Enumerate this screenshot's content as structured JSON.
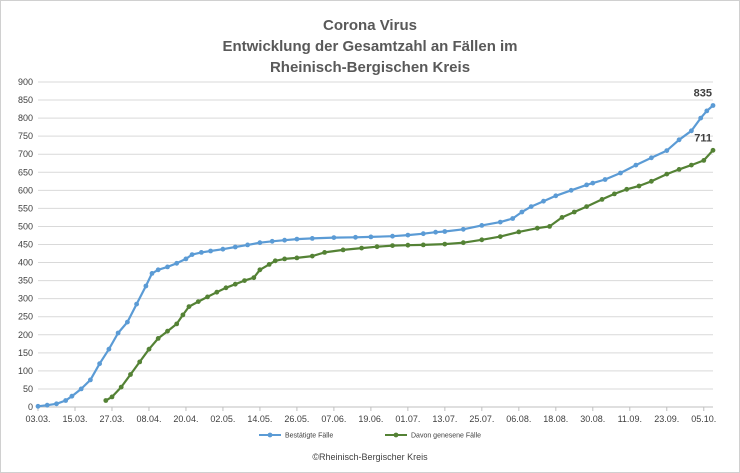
{
  "chart_data": {
    "type": "line",
    "title": [
      "Corona Virus",
      "Entwicklung der Gesamtzahl an Fällen im",
      "Rheinisch-Bergischen Kreis"
    ],
    "credit": "©Rheinisch-Bergischer Kreis",
    "xlabel": "",
    "ylabel": "",
    "ylim": [
      0,
      900
    ],
    "yticks": [
      "0",
      "50",
      "100",
      "150",
      "200",
      "250",
      "300",
      "350",
      "400",
      "450",
      "500",
      "550",
      "600",
      "650",
      "700",
      "750",
      "800",
      "850",
      "900"
    ],
    "xlim": [
      "2020-03-03",
      "2020-10-08"
    ],
    "xticks": [
      "03.03.",
      "15.03.",
      "27.03.",
      "08.04.",
      "20.04.",
      "02.05.",
      "14.05.",
      "26.05.",
      "07.06.",
      "19.06.",
      "01.07.",
      "13.07.",
      "25.07.",
      "06.08.",
      "18.08.",
      "30.08.",
      "11.09.",
      "23.09.",
      "05.10."
    ],
    "grid": "horizontal",
    "legend_position": "bottom",
    "colors": {
      "series_1": "#5b9bd5",
      "series_2": "#548235"
    },
    "end_labels": [
      "835",
      "711"
    ],
    "series": [
      {
        "name": "Bestätigte Fälle",
        "points": [
          [
            "2020-03-03",
            2
          ],
          [
            "2020-03-06",
            5
          ],
          [
            "2020-03-09",
            9
          ],
          [
            "2020-03-12",
            18
          ],
          [
            "2020-03-14",
            30
          ],
          [
            "2020-03-17",
            50
          ],
          [
            "2020-03-20",
            75
          ],
          [
            "2020-03-23",
            120
          ],
          [
            "2020-03-26",
            160
          ],
          [
            "2020-03-29",
            205
          ],
          [
            "2020-04-01",
            235
          ],
          [
            "2020-04-04",
            285
          ],
          [
            "2020-04-07",
            335
          ],
          [
            "2020-04-09",
            370
          ],
          [
            "2020-04-11",
            380
          ],
          [
            "2020-04-14",
            388
          ],
          [
            "2020-04-17",
            398
          ],
          [
            "2020-04-20",
            410
          ],
          [
            "2020-04-22",
            422
          ],
          [
            "2020-04-25",
            428
          ],
          [
            "2020-04-28",
            432
          ],
          [
            "2020-05-02",
            437
          ],
          [
            "2020-05-06",
            443
          ],
          [
            "2020-05-10",
            449
          ],
          [
            "2020-05-14",
            455
          ],
          [
            "2020-05-18",
            459
          ],
          [
            "2020-05-22",
            462
          ],
          [
            "2020-05-26",
            465
          ],
          [
            "2020-05-31",
            467
          ],
          [
            "2020-06-07",
            469
          ],
          [
            "2020-06-14",
            470
          ],
          [
            "2020-06-19",
            471
          ],
          [
            "2020-06-26",
            473
          ],
          [
            "2020-07-01",
            476
          ],
          [
            "2020-07-06",
            480
          ],
          [
            "2020-07-10",
            484
          ],
          [
            "2020-07-13",
            486
          ],
          [
            "2020-07-19",
            492
          ],
          [
            "2020-07-25",
            503
          ],
          [
            "2020-07-31",
            512
          ],
          [
            "2020-08-04",
            522
          ],
          [
            "2020-08-07",
            540
          ],
          [
            "2020-08-10",
            555
          ],
          [
            "2020-08-14",
            570
          ],
          [
            "2020-08-18",
            585
          ],
          [
            "2020-08-23",
            600
          ],
          [
            "2020-08-28",
            615
          ],
          [
            "2020-08-30",
            620
          ],
          [
            "2020-09-03",
            630
          ],
          [
            "2020-09-08",
            648
          ],
          [
            "2020-09-13",
            670
          ],
          [
            "2020-09-18",
            690
          ],
          [
            "2020-09-23",
            710
          ],
          [
            "2020-09-27",
            740
          ],
          [
            "2020-10-01",
            765
          ],
          [
            "2020-10-04",
            800
          ],
          [
            "2020-10-06",
            820
          ],
          [
            "2020-10-08",
            835
          ]
        ]
      },
      {
        "name": "Davon genesene Fälle",
        "points": [
          [
            "2020-03-25",
            18
          ],
          [
            "2020-03-27",
            28
          ],
          [
            "2020-03-30",
            55
          ],
          [
            "2020-04-02",
            90
          ],
          [
            "2020-04-05",
            125
          ],
          [
            "2020-04-08",
            160
          ],
          [
            "2020-04-11",
            190
          ],
          [
            "2020-04-14",
            210
          ],
          [
            "2020-04-17",
            230
          ],
          [
            "2020-04-19",
            255
          ],
          [
            "2020-04-21",
            278
          ],
          [
            "2020-04-24",
            292
          ],
          [
            "2020-04-27",
            305
          ],
          [
            "2020-04-30",
            318
          ],
          [
            "2020-05-03",
            330
          ],
          [
            "2020-05-06",
            340
          ],
          [
            "2020-05-09",
            350
          ],
          [
            "2020-05-12",
            358
          ],
          [
            "2020-05-14",
            380
          ],
          [
            "2020-05-17",
            395
          ],
          [
            "2020-05-19",
            405
          ],
          [
            "2020-05-22",
            410
          ],
          [
            "2020-05-26",
            413
          ],
          [
            "2020-05-31",
            418
          ],
          [
            "2020-06-04",
            428
          ],
          [
            "2020-06-10",
            435
          ],
          [
            "2020-06-16",
            440
          ],
          [
            "2020-06-21",
            444
          ],
          [
            "2020-06-26",
            447
          ],
          [
            "2020-07-01",
            448
          ],
          [
            "2020-07-06",
            449
          ],
          [
            "2020-07-13",
            451
          ],
          [
            "2020-07-19",
            455
          ],
          [
            "2020-07-25",
            463
          ],
          [
            "2020-07-31",
            472
          ],
          [
            "2020-08-06",
            485
          ],
          [
            "2020-08-12",
            495
          ],
          [
            "2020-08-16",
            500
          ],
          [
            "2020-08-20",
            525
          ],
          [
            "2020-08-24",
            540
          ],
          [
            "2020-08-28",
            555
          ],
          [
            "2020-09-02",
            575
          ],
          [
            "2020-09-06",
            590
          ],
          [
            "2020-09-10",
            603
          ],
          [
            "2020-09-14",
            612
          ],
          [
            "2020-09-18",
            625
          ],
          [
            "2020-09-23",
            645
          ],
          [
            "2020-09-27",
            658
          ],
          [
            "2020-10-01",
            670
          ],
          [
            "2020-10-05",
            683
          ],
          [
            "2020-10-08",
            711
          ]
        ]
      }
    ]
  }
}
